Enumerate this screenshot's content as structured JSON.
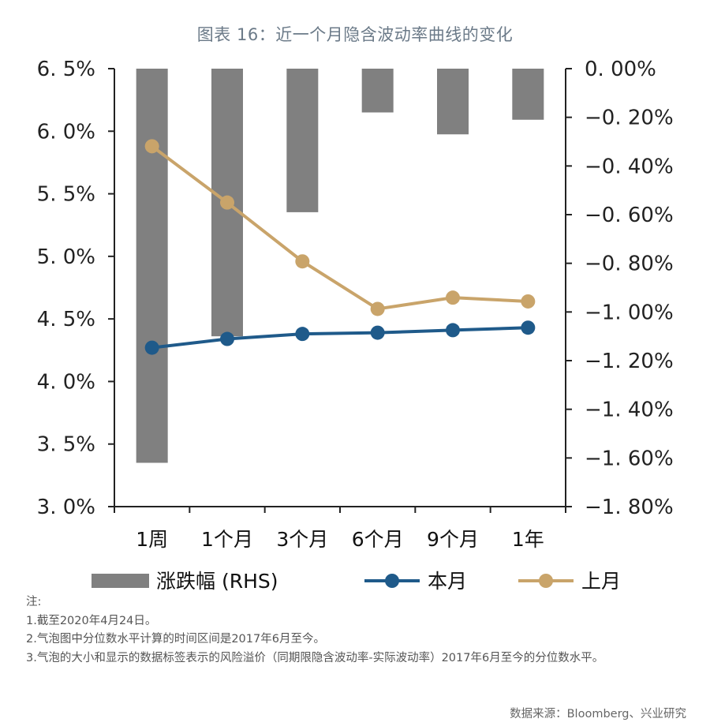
{
  "chart_data": {
    "type": "bar+line",
    "title": "图表 16：近一个月隐含波动率曲线的变化",
    "categories": [
      "1周",
      "1个月",
      "3个月",
      "6个月",
      "9个月",
      "1年"
    ],
    "left_axis": {
      "ylim": [
        3.0,
        6.5
      ],
      "ticks": [
        6.5,
        6.0,
        5.5,
        5.0,
        4.5,
        4.0,
        3.5,
        3.0
      ],
      "tick_labels": [
        "6. 5%",
        "6. 0%",
        "5. 5%",
        "5. 0%",
        "4. 5%",
        "4. 0%",
        "3. 5%",
        "3. 0%"
      ],
      "unit": "%"
    },
    "right_axis": {
      "ylim": [
        -1.8,
        0.0
      ],
      "ticks": [
        0.0,
        -0.2,
        -0.4,
        -0.6,
        -0.8,
        -1.0,
        -1.2,
        -1.4,
        -1.6,
        -1.8
      ],
      "tick_labels": [
        "0. 00%",
        "−0. 20%",
        "−0. 40%",
        "−0. 60%",
        "−0. 80%",
        "−1. 00%",
        "−1. 20%",
        "−1. 40%",
        "−1. 60%",
        "−1. 80%"
      ],
      "unit": "%"
    },
    "series": [
      {
        "name": "涨跌幅 (RHS)",
        "type": "bar",
        "axis": "right",
        "color": "#808080",
        "values": [
          -1.62,
          -1.1,
          -0.59,
          -0.18,
          -0.27,
          -0.21
        ]
      },
      {
        "name": "本月",
        "type": "line",
        "axis": "left",
        "color": "#1f5a8a",
        "values": [
          4.27,
          4.34,
          4.38,
          4.39,
          4.41,
          4.43
        ]
      },
      {
        "name": "上月",
        "type": "line",
        "axis": "left",
        "color": "#c9a46a",
        "values": [
          5.88,
          5.43,
          4.96,
          4.58,
          4.67,
          4.64
        ]
      }
    ],
    "legend": {
      "position": "bottom",
      "items": [
        "涨跌幅 (RHS)",
        "本月",
        "上月"
      ]
    },
    "grid": false
  },
  "notes": {
    "heading": "注:",
    "lines": [
      "1.截至2020年4月24日。",
      "2.气泡图中分位数水平计算的时间区间是2017年6月至今。",
      "3.气泡的大小和显示的数据标签表示的风险溢价（同期限隐含波动率-实际波动率）2017年6月至今的分位数水平。"
    ]
  },
  "source": "数据来源：Bloomberg、兴业研究"
}
